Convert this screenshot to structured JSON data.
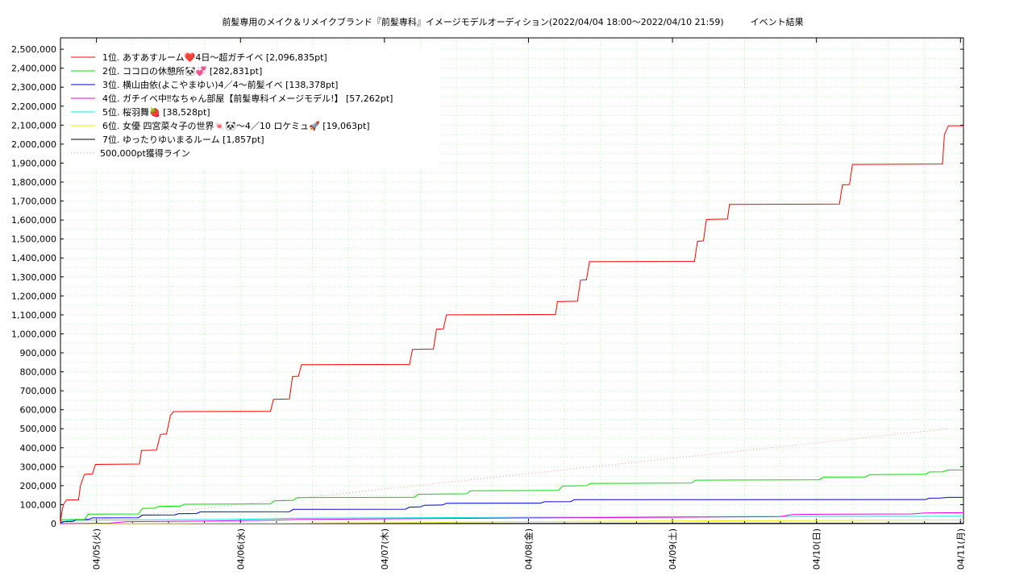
{
  "chart_data": {
    "type": "line",
    "title": "前髪専用のメイク＆リメイクブランド『前髪専科』イメージモデルオーディション(2022/04/04 18:00〜2022/04/10 21:59)　　　イベント結果",
    "xlabel": "",
    "ylabel": "",
    "x_range": [
      "2022-04-04 18:00",
      "2022-04-11 00:30"
    ],
    "ylim": [
      0,
      2560000
    ],
    "grid": true,
    "legend_position": "top-left",
    "y_ticks": [
      0,
      100000,
      200000,
      300000,
      400000,
      500000,
      600000,
      700000,
      800000,
      900000,
      1000000,
      1100000,
      1200000,
      1300000,
      1400000,
      1500000,
      1600000,
      1700000,
      1800000,
      1900000,
      2000000,
      2100000,
      2200000,
      2300000,
      2400000,
      2500000
    ],
    "y_tick_labels": [
      "0",
      "100,000",
      "200,000",
      "300,000",
      "400,000",
      "500,000",
      "600,000",
      "700,000",
      "800,000",
      "900,000",
      "1,000,000",
      "1,100,000",
      "1,200,000",
      "1,300,000",
      "1,400,000",
      "1,500,000",
      "1,600,000",
      "1,700,000",
      "1,800,000",
      "1,900,000",
      "2,000,000",
      "2,100,000",
      "2,200,000",
      "2,300,000",
      "2,400,000",
      "2,500,000"
    ],
    "x_ticks": [
      "2022-04-05 00:00",
      "2022-04-06 00:00",
      "2022-04-07 00:00",
      "2022-04-08 00:00",
      "2022-04-09 00:00",
      "2022-04-10 00:00",
      "2022-04-11 00:00"
    ],
    "x_tick_labels": [
      "04/05(火)",
      "04/06(水)",
      "04/07(木)",
      "04/08(金)",
      "04/09(土)",
      "04/10(日)",
      "04/11(月)"
    ],
    "series": [
      {
        "name": "1位. あすあすルーム❤️4日〜超ガチイベ [2,096,835pt]",
        "color": "#ff0000",
        "dash": "",
        "points": [
          [
            "2022-04-04 18:00",
            0
          ],
          [
            "2022-04-04 18:10",
            50000
          ],
          [
            "2022-04-04 18:30",
            100000
          ],
          [
            "2022-04-04 19:00",
            125000
          ],
          [
            "2022-04-04 21:00",
            125000
          ],
          [
            "2022-04-04 21:20",
            200000
          ],
          [
            "2022-04-04 22:00",
            260000
          ],
          [
            "2022-04-04 23:20",
            262000
          ],
          [
            "2022-04-04 23:50",
            312000
          ],
          [
            "2022-04-05 07:10",
            314000
          ],
          [
            "2022-04-05 07:30",
            385000
          ],
          [
            "2022-04-05 10:00",
            387000
          ],
          [
            "2022-04-05 10:40",
            470000
          ],
          [
            "2022-04-05 11:40",
            472000
          ],
          [
            "2022-04-05 12:20",
            570000
          ],
          [
            "2022-04-05 12:50",
            590000
          ],
          [
            "2022-04-06 05:00",
            592000
          ],
          [
            "2022-04-06 05:30",
            655000
          ],
          [
            "2022-04-06 08:10",
            657000
          ],
          [
            "2022-04-06 08:40",
            775000
          ],
          [
            "2022-04-06 09:40",
            777000
          ],
          [
            "2022-04-06 10:10",
            837000
          ],
          [
            "2022-04-07 04:10",
            839000
          ],
          [
            "2022-04-07 04:40",
            918000
          ],
          [
            "2022-04-07 08:10",
            920000
          ],
          [
            "2022-04-07 08:40",
            1025000
          ],
          [
            "2022-04-07 09:50",
            1027000
          ],
          [
            "2022-04-07 10:20",
            1100000
          ],
          [
            "2022-04-08 04:30",
            1102000
          ],
          [
            "2022-04-08 04:50",
            1170000
          ],
          [
            "2022-04-08 08:10",
            1172000
          ],
          [
            "2022-04-08 08:40",
            1283000
          ],
          [
            "2022-04-08 09:40",
            1285000
          ],
          [
            "2022-04-08 10:10",
            1380000
          ],
          [
            "2022-04-09 03:40",
            1382000
          ],
          [
            "2022-04-09 04:10",
            1488000
          ],
          [
            "2022-04-09 05:10",
            1490000
          ],
          [
            "2022-04-09 05:40",
            1603000
          ],
          [
            "2022-04-09 09:10",
            1605000
          ],
          [
            "2022-04-09 09:30",
            1682000
          ],
          [
            "2022-04-10 03:50",
            1684000
          ],
          [
            "2022-04-10 04:20",
            1785000
          ],
          [
            "2022-04-10 05:30",
            1787000
          ],
          [
            "2022-04-10 06:00",
            1893000
          ],
          [
            "2022-04-10 21:00",
            1895000
          ],
          [
            "2022-04-10 21:20",
            2050000
          ],
          [
            "2022-04-10 21:59",
            2096835
          ],
          [
            "2022-04-11 00:30",
            2096835
          ]
        ]
      },
      {
        "name": "2位. ココロの休憩所🐼💞 [282,831pt]",
        "color": "#00dd00",
        "dash": "",
        "points": [
          [
            "2022-04-04 18:00",
            0
          ],
          [
            "2022-04-04 18:10",
            20000
          ],
          [
            "2022-04-04 22:00",
            22000
          ],
          [
            "2022-04-04 22:40",
            50000
          ],
          [
            "2022-04-05 07:00",
            51000
          ],
          [
            "2022-04-05 07:40",
            80000
          ],
          [
            "2022-04-05 09:40",
            81000
          ],
          [
            "2022-04-05 10:20",
            90000
          ],
          [
            "2022-04-05 14:00",
            92000
          ],
          [
            "2022-04-05 14:40",
            102000
          ],
          [
            "2022-04-06 05:00",
            104000
          ],
          [
            "2022-04-06 05:40",
            120000
          ],
          [
            "2022-04-06 08:40",
            122000
          ],
          [
            "2022-04-06 09:30",
            137000
          ],
          [
            "2022-04-07 05:00",
            139000
          ],
          [
            "2022-04-07 05:40",
            155000
          ],
          [
            "2022-04-07 13:40",
            157000
          ],
          [
            "2022-04-07 14:20",
            173000
          ],
          [
            "2022-04-08 05:00",
            175000
          ],
          [
            "2022-04-08 05:40",
            198000
          ],
          [
            "2022-04-08 09:40",
            200000
          ],
          [
            "2022-04-08 10:20",
            212000
          ],
          [
            "2022-04-09 03:10",
            214000
          ],
          [
            "2022-04-09 03:50",
            229000
          ],
          [
            "2022-04-10 00:30",
            231000
          ],
          [
            "2022-04-10 01:10",
            245000
          ],
          [
            "2022-04-10 08:10",
            246000
          ],
          [
            "2022-04-10 08:50",
            258000
          ],
          [
            "2022-04-10 18:10",
            260000
          ],
          [
            "2022-04-10 18:50",
            272000
          ],
          [
            "2022-04-10 21:00",
            273000
          ],
          [
            "2022-04-10 21:59",
            282831
          ],
          [
            "2022-04-11 00:30",
            282831
          ]
        ]
      },
      {
        "name": "3位. 横山由依(よこやまゆい)4／4〜前髪イベ [138,378pt]",
        "color": "#0000dd",
        "dash": "",
        "points": [
          [
            "2022-04-04 18:00",
            0
          ],
          [
            "2022-04-04 18:20",
            10000
          ],
          [
            "2022-04-04 20:00",
            11000
          ],
          [
            "2022-04-04 20:40",
            20000
          ],
          [
            "2022-04-04 22:40",
            22000
          ],
          [
            "2022-04-04 23:20",
            30000
          ],
          [
            "2022-04-05 07:00",
            31000
          ],
          [
            "2022-04-05 07:40",
            45000
          ],
          [
            "2022-04-05 13:00",
            46000
          ],
          [
            "2022-04-05 13:40",
            52000
          ],
          [
            "2022-04-05 16:40",
            53000
          ],
          [
            "2022-04-05 17:20",
            62000
          ],
          [
            "2022-04-06 08:10",
            63000
          ],
          [
            "2022-04-06 08:50",
            75000
          ],
          [
            "2022-04-07 03:30",
            76000
          ],
          [
            "2022-04-07 04:10",
            87000
          ],
          [
            "2022-04-07 06:00",
            88000
          ],
          [
            "2022-04-07 06:40",
            97000
          ],
          [
            "2022-04-07 09:40",
            98000
          ],
          [
            "2022-04-07 10:20",
            107000
          ],
          [
            "2022-04-08 02:00",
            108000
          ],
          [
            "2022-04-08 02:40",
            115000
          ],
          [
            "2022-04-08 07:00",
            116000
          ],
          [
            "2022-04-08 07:40",
            126000
          ],
          [
            "2022-04-10 18:10",
            127000
          ],
          [
            "2022-04-10 18:50",
            134000
          ],
          [
            "2022-04-10 20:40",
            135000
          ],
          [
            "2022-04-10 21:59",
            138378
          ],
          [
            "2022-04-11 00:30",
            138378
          ]
        ]
      },
      {
        "name": "4位. ガチイベ中‼なちゃん部屋【前髪専科イメージモデル!】 [57,262pt]",
        "color": "#ee00ee",
        "dash": "",
        "points": [
          [
            "2022-04-04 18:00",
            0
          ],
          [
            "2022-04-05 02:00",
            2000
          ],
          [
            "2022-04-05 05:00",
            10000
          ],
          [
            "2022-04-05 11:40",
            12000
          ],
          [
            "2022-04-05 18:00",
            13000
          ],
          [
            "2022-04-06 05:00",
            18000
          ],
          [
            "2022-04-06 10:00",
            22000
          ],
          [
            "2022-04-07 05:00",
            26000
          ],
          [
            "2022-04-08 03:00",
            30000
          ],
          [
            "2022-04-08 14:00",
            32000
          ],
          [
            "2022-04-09 14:00",
            36000
          ],
          [
            "2022-04-09 18:00",
            37000
          ],
          [
            "2022-04-09 20:00",
            48000
          ],
          [
            "2022-04-10 04:00",
            50000
          ],
          [
            "2022-04-10 16:00",
            51000
          ],
          [
            "2022-04-10 18:00",
            56000
          ],
          [
            "2022-04-10 21:59",
            57262
          ],
          [
            "2022-04-11 00:30",
            57262
          ]
        ]
      },
      {
        "name": "5位. 桜羽舞🍓 [38,528pt]",
        "color": "#00eedd",
        "dash": "",
        "points": [
          [
            "2022-04-04 18:00",
            0
          ],
          [
            "2022-04-04 19:00",
            15000
          ],
          [
            "2022-04-04 20:30",
            18000
          ],
          [
            "2022-04-05 05:00",
            19000
          ],
          [
            "2022-04-05 10:00",
            20000
          ],
          [
            "2022-04-06 00:00",
            22000
          ],
          [
            "2022-04-06 08:00",
            28000
          ],
          [
            "2022-04-07 00:00",
            30000
          ],
          [
            "2022-04-07 20:00",
            33000
          ],
          [
            "2022-04-08 12:00",
            34000
          ],
          [
            "2022-04-09 00:00",
            36000
          ],
          [
            "2022-04-09 12:00",
            37000
          ],
          [
            "2022-04-10 21:59",
            38528
          ],
          [
            "2022-04-11 00:30",
            38528
          ]
        ]
      },
      {
        "name": "6位. 女優 四宮菜々子の世界🍬🐼〜4／10 ロケミュ🚀 [19,063pt]",
        "color": "#eeee00",
        "dash": "",
        "points": [
          [
            "2022-04-04 18:00",
            0
          ],
          [
            "2022-04-05 12:00",
            1000
          ],
          [
            "2022-04-06 12:00",
            3000
          ],
          [
            "2022-04-07 08:00",
            5000
          ],
          [
            "2022-04-07 12:00",
            8000
          ],
          [
            "2022-04-08 08:00",
            12000
          ],
          [
            "2022-04-09 00:00",
            14000
          ],
          [
            "2022-04-09 20:00",
            16000
          ],
          [
            "2022-04-10 12:00",
            18000
          ],
          [
            "2022-04-10 21:59",
            19063
          ],
          [
            "2022-04-11 00:30",
            19063
          ]
        ]
      },
      {
        "name": "7位. ゆったりゆいまるルーム [1,857pt]",
        "color": "#000000",
        "dash": "",
        "points": [
          [
            "2022-04-04 18:00",
            0
          ],
          [
            "2022-04-06 00:00",
            800
          ],
          [
            "2022-04-08 00:00",
            1200
          ],
          [
            "2022-04-10 21:59",
            1857
          ],
          [
            "2022-04-11 00:30",
            1857
          ]
        ]
      },
      {
        "name": "500,000pt獲得ライン",
        "color": "#ee9999",
        "dash": "1,3",
        "points": [
          [
            "2022-04-04 18:00",
            0
          ],
          [
            "2022-04-10 21:59",
            500000
          ]
        ]
      }
    ]
  }
}
